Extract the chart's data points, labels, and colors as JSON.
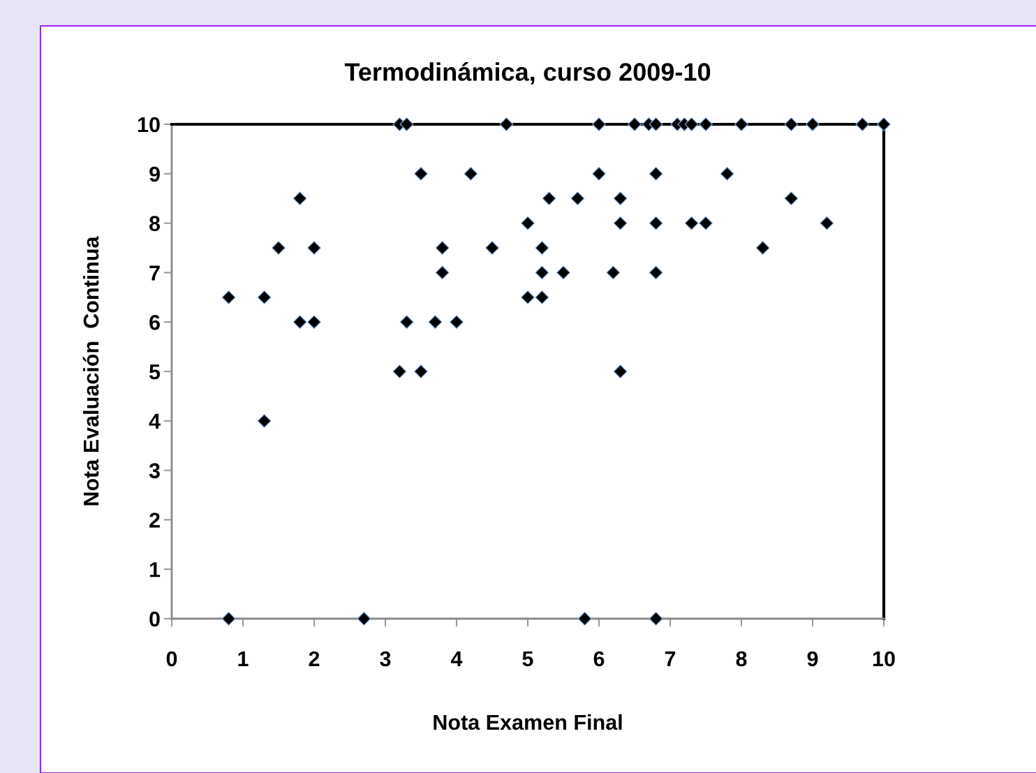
{
  "chart_data": {
    "type": "scatter",
    "title": "Termodinámica, curso 2009-10",
    "xlabel": "Nota Examen Final",
    "ylabel": "Nota Evaluación  Continua",
    "xlim": [
      0,
      10
    ],
    "ylim": [
      0,
      10
    ],
    "xticks": [
      0,
      1,
      2,
      3,
      4,
      5,
      6,
      7,
      8,
      9,
      10
    ],
    "yticks": [
      0,
      1,
      2,
      3,
      4,
      5,
      6,
      7,
      8,
      9,
      10
    ],
    "grid": false,
    "legend": false,
    "marker": "diamond",
    "series": [
      {
        "color": "#000000",
        "x": [
          3.2,
          3.3,
          4.7,
          6.0,
          6.5,
          6.7,
          6.8,
          7.1,
          7.2,
          7.3,
          7.5,
          8.0,
          8.7,
          9.0,
          9.7,
          10.0,
          3.5,
          4.2,
          6.0,
          6.8,
          7.8,
          1.8,
          5.3,
          5.7,
          6.3,
          8.7,
          5.0,
          6.3,
          6.8,
          7.3,
          7.5,
          9.2,
          1.5,
          2.0,
          3.8,
          4.5,
          5.2,
          8.3,
          3.8,
          5.2,
          5.5,
          6.2,
          6.8,
          0.8,
          1.3,
          5.0,
          5.2,
          1.8,
          2.0,
          3.3,
          3.7,
          4.0,
          3.2,
          3.5,
          6.3,
          1.3,
          0.8,
          2.7,
          5.8,
          6.8
        ],
        "values": [
          10,
          10,
          10,
          10,
          10,
          10,
          10,
          10,
          10,
          10,
          10,
          10,
          10,
          10,
          10,
          10,
          9,
          9,
          9,
          9,
          9,
          8.5,
          8.5,
          8.5,
          8.5,
          8.5,
          8,
          8,
          8,
          8,
          8,
          8,
          7.5,
          7.5,
          7.5,
          7.5,
          7.5,
          7.5,
          7,
          7,
          7,
          7,
          7,
          6.5,
          6.5,
          6.5,
          6.5,
          6,
          6,
          6,
          6,
          6,
          5,
          5,
          5,
          4,
          0,
          0,
          0,
          0
        ]
      }
    ]
  }
}
